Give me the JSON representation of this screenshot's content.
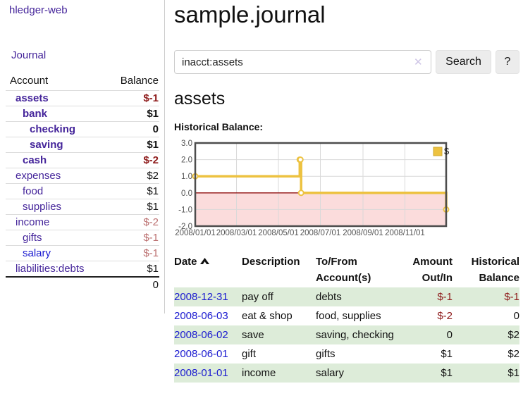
{
  "app": {
    "title": "hledger-web"
  },
  "sidebar": {
    "journal_link": "Journal",
    "table": {
      "headers": {
        "account": "Account",
        "balance": "Balance"
      },
      "rows": [
        {
          "account": "assets",
          "balance": "$-1",
          "level": 1,
          "bold": true,
          "balance_color": "negative"
        },
        {
          "account": "bank",
          "balance": "$1",
          "level": 2,
          "bold": true,
          "balance_color": "normal"
        },
        {
          "account": "checking",
          "balance": "0",
          "level": 3,
          "bold": true,
          "balance_color": "normal"
        },
        {
          "account": "saving",
          "balance": "$1",
          "level": 3,
          "bold": true,
          "balance_color": "normal"
        },
        {
          "account": "cash",
          "balance": "$-2",
          "level": 2,
          "bold": true,
          "balance_color": "negative"
        },
        {
          "account": "expenses",
          "balance": "$2",
          "level": 1,
          "bold": false,
          "balance_color": "normal"
        },
        {
          "account": "food",
          "balance": "$1",
          "level": 2,
          "bold": false,
          "balance_color": "normal"
        },
        {
          "account": "supplies",
          "balance": "$1",
          "level": 2,
          "bold": false,
          "balance_color": "normal"
        },
        {
          "account": "income",
          "balance": "$-2",
          "level": 1,
          "bold": false,
          "balance_color": "negative-muted"
        },
        {
          "account": "gifts",
          "balance": "$-1",
          "level": 2,
          "bold": false,
          "balance_color": "negative-muted"
        },
        {
          "account": "salary",
          "balance": "$-1",
          "level": 2,
          "bold": false,
          "balance_color": "negative-muted",
          "link_color": "blue"
        },
        {
          "account": "liabilities:debts",
          "balance": "$1",
          "level": 1,
          "bold": false,
          "balance_color": "normal"
        }
      ],
      "total": "0"
    }
  },
  "main": {
    "title": "sample.journal",
    "search": {
      "value": "inacct:assets",
      "clear_icon": "✕",
      "button_label": "Search",
      "help_label": "?"
    },
    "account_heading": "assets",
    "chart_label": "Historical Balance:"
  },
  "chart_data": {
    "type": "line",
    "step": true,
    "title": "Historical Balance",
    "series": [
      {
        "name": "$",
        "color": "#edc240",
        "points": [
          [
            "2008-01-01",
            1
          ],
          [
            "2008-06-01",
            2
          ],
          [
            "2008-06-02",
            2
          ],
          [
            "2008-06-03",
            0
          ],
          [
            "2008-12-31",
            -1
          ]
        ]
      }
    ],
    "ylim": [
      -2,
      3
    ],
    "yticks": [
      "3.0",
      "2.0",
      "1.0",
      "0.0",
      "-1.0",
      "-2.0"
    ],
    "ytick_values": [
      3,
      2,
      1,
      0,
      -1,
      -2
    ],
    "xticks": [
      "2008/01/01",
      "2008/03/01",
      "2008/05/01",
      "2008/07/01",
      "2008/09/01",
      "2008/11/01"
    ],
    "xtick_dates": [
      "2008-01-01",
      "2008-03-01",
      "2008-05-01",
      "2008-07-01",
      "2008-09-01",
      "2008-11-01"
    ],
    "xrange": [
      "2008-01-01",
      "2008-12-31"
    ],
    "legend_position": "top-right",
    "grid": true,
    "negative_fill": "#fbdcdc",
    "zero_line_color": "#8f0d0d",
    "grid_color": "#d9d9d9",
    "border_color": "#4d4d4d",
    "tick_label_color": "#545454"
  },
  "register": {
    "headers": {
      "date": "Date",
      "description": "Description",
      "accounts_line1": "To/From",
      "accounts_line2": "Account(s)",
      "amount_line1": "Amount",
      "amount_line2": "Out/In",
      "balance_line1": "Historical",
      "balance_line2": "Balance"
    },
    "rows": [
      {
        "date": "2008-12-31",
        "description": "pay off",
        "accounts": "debts",
        "amount": "$-1",
        "balance": "$-1",
        "amount_neg": true,
        "balance_neg": true,
        "striped": true
      },
      {
        "date": "2008-06-03",
        "description": "eat & shop",
        "accounts": "food, supplies",
        "amount": "$-2",
        "balance": "0",
        "amount_neg": true,
        "balance_neg": false,
        "striped": false
      },
      {
        "date": "2008-06-02",
        "description": "save",
        "accounts": "saving, checking",
        "amount": "0",
        "balance": "$2",
        "amount_neg": false,
        "balance_neg": false,
        "striped": true
      },
      {
        "date": "2008-06-01",
        "description": "gift",
        "accounts": "gifts",
        "amount": "$1",
        "balance": "$2",
        "amount_neg": false,
        "balance_neg": false,
        "striped": false
      },
      {
        "date": "2008-01-01",
        "description": "income",
        "accounts": "salary",
        "amount": "$1",
        "balance": "$1",
        "amount_neg": false,
        "balance_neg": false,
        "striped": true
      }
    ]
  },
  "colors": {
    "link_purple": "#44249a",
    "link_blue": "#1a1ad0",
    "negative": "#8e1b1b",
    "negative_muted": "#bb6f6f",
    "stripe_green": "#ddecd9"
  }
}
